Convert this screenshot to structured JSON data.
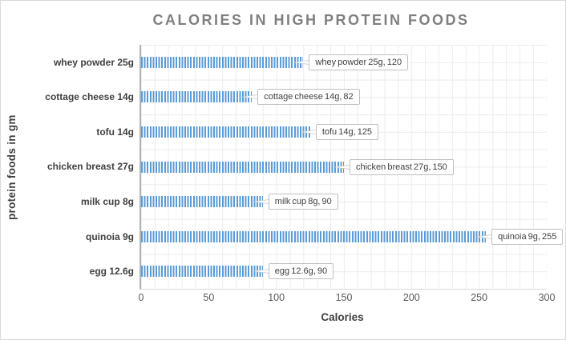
{
  "title": "CALORIES IN HIGH PROTEIN FOODS",
  "chart_data": {
    "type": "bar",
    "orientation": "horizontal",
    "title": "CALORIES IN HIGH PROTEIN FOODS",
    "xlabel": "Calories",
    "ylabel": "protein foods in gm",
    "categories": [
      "whey powder 25g",
      "cottage cheese 14g",
      "tofu 14g",
      "chicken breast 27g",
      "milk cup 8g",
      "quinoia 9g",
      "egg 12.6g"
    ],
    "values": [
      120,
      82,
      125,
      150,
      90,
      255,
      90
    ],
    "data_labels": [
      "whey powder 25g, 120",
      "cottage cheese 14g, 82",
      "tofu 14g, 125",
      "chicken breast 27g, 150",
      "milk cup 8g, 90",
      "quinoia 9g, 255",
      "egg 12.6g, 90"
    ],
    "xlim": [
      0,
      300
    ],
    "x_ticks": [
      0,
      50,
      100,
      150,
      200,
      250,
      300
    ],
    "grid": true,
    "legend": "none",
    "bar_color": "#5B9BD5",
    "bar_pattern": "vertical-stripes"
  },
  "colors": {
    "title": "#7F7F7F",
    "axis_text": "#404040",
    "tick_text": "#595959",
    "gridline": "#ECECEC",
    "axis_line": "#B3B3B3",
    "chart_border": "#D9D9D9",
    "bar": "#5B9BD5",
    "callout_border": "#BFBFBF"
  }
}
